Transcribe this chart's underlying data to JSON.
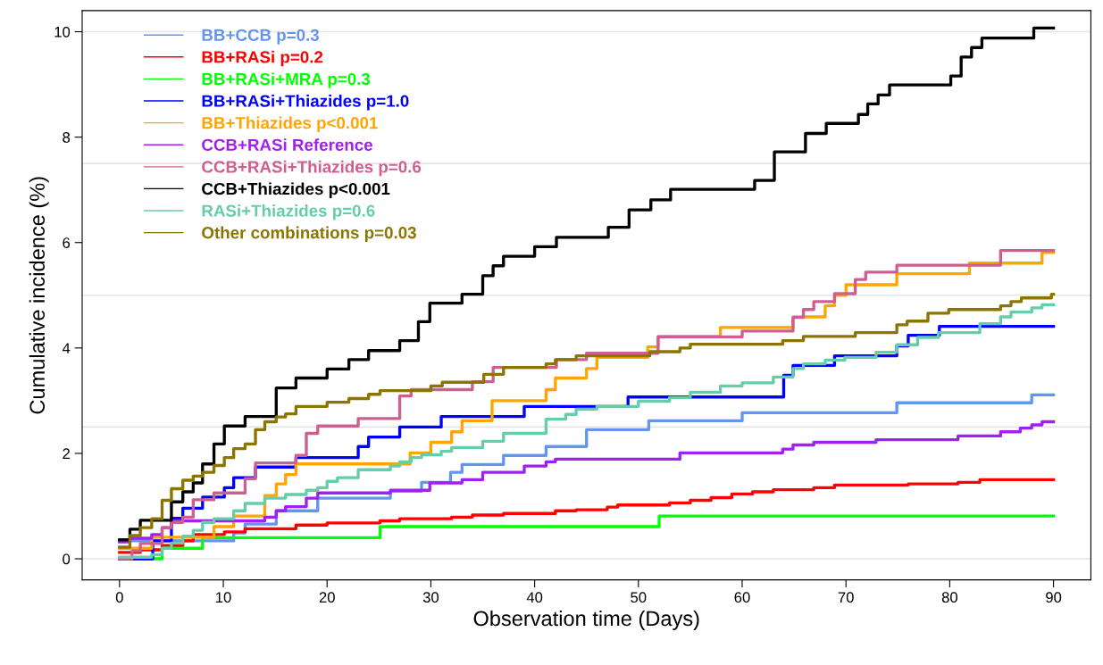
{
  "chart_data": {
    "type": "step",
    "xlabel": "Observation time (Days)",
    "ylabel": "Cumulative incidence (%)",
    "xlim": [
      -3.6,
      93.6
    ],
    "xticks": [
      0,
      10,
      20,
      30,
      40,
      50,
      60,
      70,
      80,
      90
    ],
    "ylim": [
      -0.4,
      10.4
    ],
    "yticks": [
      0,
      2,
      4,
      6,
      8,
      10
    ],
    "legend": "top left",
    "grid": false,
    "ref_lines": [
      {
        "axis": "y",
        "value": 0,
        "color": "#e5e5e5"
      },
      {
        "axis": "y",
        "value": 2.5,
        "color": "#e5e5e5"
      },
      {
        "axis": "y",
        "value": 5,
        "color": "#e5e5e5"
      },
      {
        "axis": "y",
        "value": 7.5,
        "color": "#e5e5e5"
      },
      {
        "axis": "y",
        "value": 10,
        "color": "#e5e5e5"
      }
    ],
    "series": [
      {
        "name": "BB+CCB p=0.3",
        "color": "#6495ed",
        "x": [
          0,
          11.0,
          12.1,
          15.1,
          19.1,
          26.1,
          29.1,
          31.9,
          33.0,
          37.0,
          41.1,
          45.0,
          51.0,
          60.0,
          74.9,
          87.9,
          90
        ],
        "values": [
          0.34,
          0.49,
          0.66,
          0.91,
          1.15,
          1.28,
          1.45,
          1.64,
          1.79,
          1.96,
          2.13,
          2.45,
          2.62,
          2.77,
          2.96,
          3.11,
          3.11
        ]
      },
      {
        "name": "BB+RASi p=0.2",
        "color": "#ff0000",
        "x": [
          0,
          2.0,
          4.1,
          6.1,
          7.1,
          10.1,
          12.1,
          17.0,
          20.0,
          25.1,
          27.0,
          32.0,
          34.0,
          37.0,
          42.0,
          44.0,
          47.0,
          48.0,
          53.0,
          55.0,
          57.0,
          59.0,
          61.0,
          63.0,
          66.9,
          68.9,
          76.0,
          80.8,
          82.9,
          90
        ],
        "values": [
          0.12,
          0.17,
          0.25,
          0.34,
          0.46,
          0.51,
          0.57,
          0.64,
          0.68,
          0.72,
          0.76,
          0.79,
          0.83,
          0.86,
          0.91,
          0.93,
          0.98,
          1.02,
          1.06,
          1.11,
          1.16,
          1.23,
          1.27,
          1.31,
          1.35,
          1.4,
          1.42,
          1.45,
          1.5,
          1.5
        ]
      },
      {
        "name": "BB+RASi+MRA p=0.3",
        "color": "#00ff00",
        "x": [
          0,
          4.1,
          8.0,
          25.1,
          52.0,
          90
        ],
        "values": [
          0,
          0.2,
          0.4,
          0.61,
          0.81,
          0.81
        ]
      },
      {
        "name": "BB+RASi+Thiazides p=1.0",
        "color": "#0000ff",
        "x": [
          0,
          3.2,
          5.0,
          6.1,
          8.0,
          10.1,
          11.0,
          13.1,
          17.0,
          23.0,
          24.0,
          27.0,
          31.0,
          39.0,
          49.0,
          64.0,
          64.9,
          68.9,
          74.9,
          76.0,
          79.0,
          90
        ],
        "values": [
          0,
          0.34,
          0.77,
          0.96,
          1.17,
          1.35,
          1.54,
          1.74,
          1.92,
          2.13,
          2.31,
          2.5,
          2.7,
          2.89,
          3.07,
          3.48,
          3.67,
          3.85,
          4.04,
          4.24,
          4.41,
          4.41
        ]
      },
      {
        "name": "BB+Thiazides p<0.001",
        "color": "#ffa500",
        "x": [
          0,
          3.1,
          9.1,
          11.0,
          14.0,
          15.1,
          16.0,
          17.0,
          28.0,
          30.0,
          32.0,
          33.0,
          35.9,
          41.1,
          42.0,
          45.0,
          46.0,
          50.9,
          51.9,
          57.9,
          64.9,
          68.0,
          68.9,
          70.0,
          74.9,
          81.9,
          88.9,
          90
        ],
        "values": [
          0.2,
          0.41,
          0.61,
          0.81,
          1.2,
          1.42,
          1.6,
          1.8,
          2.01,
          2.21,
          2.41,
          2.62,
          3.0,
          3.21,
          3.43,
          3.61,
          3.82,
          4.02,
          4.22,
          4.39,
          4.59,
          4.8,
          5.0,
          5.2,
          5.41,
          5.61,
          5.81,
          5.81
        ]
      },
      {
        "name": "CCB+RASi Reference",
        "color": "#a020f0",
        "x": [
          0,
          1.0,
          3.1,
          4.1,
          5.0,
          14.0,
          15.1,
          16.0,
          18.0,
          19.1,
          26.1,
          29.9,
          33.0,
          35.0,
          39.0,
          41.1,
          42.0,
          54.0,
          63.9,
          64.9,
          66.9,
          72.9,
          80.8,
          84.9,
          86.8,
          87.9,
          88.9,
          90
        ],
        "values": [
          0.32,
          0.39,
          0.46,
          0.59,
          0.72,
          0.79,
          0.91,
          0.99,
          1.15,
          1.25,
          1.3,
          1.44,
          1.5,
          1.64,
          1.76,
          1.84,
          1.89,
          2.01,
          2.08,
          2.16,
          2.21,
          2.26,
          2.33,
          2.41,
          2.48,
          2.54,
          2.6,
          2.6
        ]
      },
      {
        "name": "CCB+RASi+Thiazides p=0.6",
        "color": "#cd6090",
        "x": [
          0,
          1.2,
          2.0,
          4.1,
          5.0,
          6.1,
          7.1,
          9.1,
          12.1,
          13.1,
          17.0,
          18.0,
          19.1,
          23.0,
          27.0,
          28.1,
          34.0,
          36.0,
          42.1,
          45.0,
          51.9,
          60.0,
          64.9,
          65.9,
          66.9,
          68.9,
          70.9,
          71.9,
          74.9,
          84.9,
          90
        ],
        "values": [
          0,
          0.15,
          0.29,
          0.59,
          0.69,
          0.79,
          1.12,
          1.25,
          1.52,
          1.82,
          1.96,
          2.38,
          2.52,
          2.66,
          3.09,
          3.21,
          3.36,
          3.63,
          3.78,
          3.9,
          4.21,
          4.32,
          4.58,
          4.73,
          4.88,
          5.03,
          5.3,
          5.44,
          5.57,
          5.85,
          5.85
        ]
      },
      {
        "name": "CCB+Thiazides p<0.001",
        "color": "#000000",
        "x": [
          0,
          1.0,
          2.0,
          5.0,
          6.1,
          7.1,
          8.0,
          9.1,
          10.1,
          12.1,
          15.1,
          17.0,
          20.0,
          22.1,
          24.0,
          27.0,
          28.8,
          29.9,
          33.0,
          35.0,
          36.0,
          37.0,
          40.0,
          42.1,
          47.1,
          49.1,
          51.2,
          53.1,
          61.2,
          63.1,
          66.1,
          68.1,
          71.2,
          72.1,
          73.1,
          74.2,
          80.1,
          81.1,
          82.1,
          83.1,
          88.1,
          90
        ],
        "values": [
          0.36,
          0.56,
          0.73,
          1.08,
          1.27,
          1.44,
          1.8,
          2.18,
          2.52,
          2.7,
          3.24,
          3.43,
          3.6,
          3.78,
          3.95,
          4.14,
          4.5,
          4.85,
          5.02,
          5.37,
          5.56,
          5.74,
          5.92,
          6.1,
          6.29,
          6.62,
          6.81,
          7.01,
          7.18,
          7.72,
          8.07,
          8.26,
          8.43,
          8.63,
          8.8,
          8.99,
          9.16,
          9.52,
          9.7,
          9.88,
          10.07,
          10.07
        ]
      },
      {
        "name": "RASi+Thiazides p=0.6",
        "color": "#66cdaa",
        "x": [
          0,
          3.1,
          4.1,
          5.0,
          6.1,
          7.1,
          8.0,
          9.1,
          11.0,
          12.1,
          14.0,
          16.0,
          18.0,
          19.1,
          20.0,
          21.0,
          23.0,
          26.1,
          27.0,
          28.1,
          29.1,
          31.0,
          32.0,
          35.0,
          37.0,
          41.1,
          43.0,
          44.0,
          46.0,
          50.0,
          53.0,
          55.0,
          57.9,
          60.0,
          63.0,
          64.9,
          65.9,
          68.0,
          69.9,
          72.9,
          74.9,
          76.9,
          78.9,
          82.9,
          84.9,
          85.9,
          87.9,
          88.9,
          90
        ],
        "values": [
          0.03,
          0.08,
          0.2,
          0.3,
          0.43,
          0.54,
          0.69,
          0.76,
          0.91,
          1.05,
          1.15,
          1.22,
          1.3,
          1.35,
          1.47,
          1.54,
          1.69,
          1.76,
          1.84,
          1.92,
          1.97,
          2.04,
          2.11,
          2.23,
          2.38,
          2.65,
          2.74,
          2.84,
          2.89,
          2.99,
          3.06,
          3.16,
          3.28,
          3.34,
          3.45,
          3.61,
          3.7,
          3.77,
          3.82,
          3.92,
          4.06,
          4.2,
          4.29,
          4.46,
          4.59,
          4.68,
          4.76,
          4.82,
          4.82
        ]
      },
      {
        "name": "Other combinations p=0.03",
        "color": "#8b7500",
        "x": [
          0,
          1.0,
          2.0,
          3.1,
          4.1,
          5.0,
          6.1,
          7.1,
          8.0,
          9.1,
          10.1,
          11.0,
          12.1,
          13.1,
          14.0,
          15.1,
          16.0,
          17.0,
          20.0,
          22.1,
          24.0,
          25.1,
          30.0,
          31.1,
          35.1,
          37.0,
          41.1,
          42.0,
          44.0,
          51.1,
          54.0,
          55.0,
          63.9,
          65.9,
          70.9,
          74.9,
          75.9,
          77.9,
          79.9,
          84.9,
          85.9,
          86.9,
          89.8,
          90
        ],
        "values": [
          0.22,
          0.44,
          0.59,
          0.76,
          1.11,
          1.33,
          1.49,
          1.57,
          1.64,
          1.77,
          1.92,
          2.09,
          2.18,
          2.45,
          2.6,
          2.69,
          2.75,
          2.89,
          2.97,
          3.04,
          3.12,
          3.19,
          3.28,
          3.35,
          3.5,
          3.63,
          3.7,
          3.78,
          3.85,
          3.93,
          4.0,
          4.07,
          4.14,
          4.22,
          4.29,
          4.44,
          4.51,
          4.66,
          4.73,
          4.8,
          4.88,
          4.95,
          5.02,
          5.02
        ]
      }
    ]
  }
}
